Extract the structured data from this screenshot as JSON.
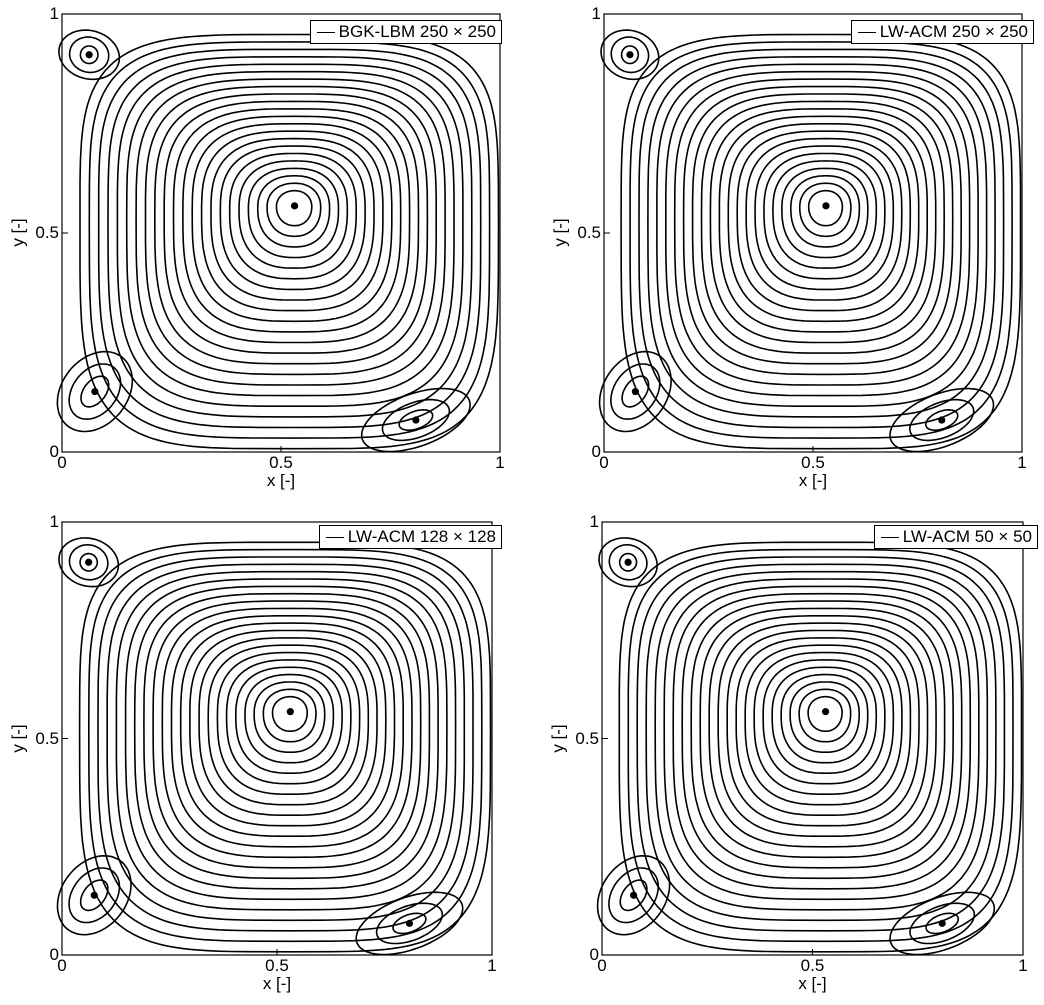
{
  "chart_data": [
    {
      "type": "line",
      "legend": "BGK-LBM 250 × 250",
      "xlabel": "x [-]",
      "ylabel": "y [-]",
      "xlim": [
        0,
        1
      ],
      "ylim": [
        0,
        1
      ],
      "xticks": [
        "0",
        "0.5",
        "1"
      ],
      "yticks": [
        "0",
        "0.5",
        "1"
      ],
      "legend_position": "top-right",
      "vortex_centers": [
        {
          "name": "primary",
          "x": 0.531,
          "y": 0.562
        },
        {
          "name": "bottom-left",
          "x": 0.075,
          "y": 0.138
        },
        {
          "name": "bottom-right",
          "x": 0.808,
          "y": 0.073
        },
        {
          "name": "top-left",
          "x": 0.062,
          "y": 0.907
        }
      ]
    },
    {
      "type": "line",
      "legend": "LW-ACM 250 × 250",
      "xlabel": "x [-]",
      "ylabel": "y [-]",
      "xlim": [
        0,
        1
      ],
      "ylim": [
        0,
        1
      ],
      "xticks": [
        "0",
        "0.5",
        "1"
      ],
      "yticks": [
        "0",
        "0.5",
        "1"
      ],
      "legend_position": "top-right",
      "vortex_centers": [
        {
          "name": "primary",
          "x": 0.531,
          "y": 0.562
        },
        {
          "name": "bottom-left",
          "x": 0.075,
          "y": 0.138
        },
        {
          "name": "bottom-right",
          "x": 0.808,
          "y": 0.073
        },
        {
          "name": "top-left",
          "x": 0.062,
          "y": 0.907
        }
      ]
    },
    {
      "type": "line",
      "legend": "LW-ACM 128 × 128",
      "xlabel": "x [-]",
      "ylabel": "y [-]",
      "xlim": [
        0,
        1
      ],
      "ylim": [
        0,
        1
      ],
      "xticks": [
        "0",
        "0.5",
        "1"
      ],
      "yticks": [
        "0",
        "0.5",
        "1"
      ],
      "legend_position": "top-right",
      "vortex_centers": [
        {
          "name": "primary",
          "x": 0.531,
          "y": 0.562
        },
        {
          "name": "bottom-left",
          "x": 0.075,
          "y": 0.138
        },
        {
          "name": "bottom-right",
          "x": 0.808,
          "y": 0.073
        },
        {
          "name": "top-left",
          "x": 0.062,
          "y": 0.907
        }
      ]
    },
    {
      "type": "line",
      "legend": "LW-ACM 50 × 50",
      "xlabel": "x [-]",
      "ylabel": "y [-]",
      "xlim": [
        0,
        1
      ],
      "ylim": [
        0,
        1
      ],
      "xticks": [
        "0",
        "0.5",
        "1"
      ],
      "yticks": [
        "0",
        "0.5",
        "1"
      ],
      "legend_position": "top-right",
      "vortex_centers": [
        {
          "name": "primary",
          "x": 0.531,
          "y": 0.562
        },
        {
          "name": "bottom-left",
          "x": 0.075,
          "y": 0.138
        },
        {
          "name": "bottom-right",
          "x": 0.808,
          "y": 0.073
        },
        {
          "name": "top-left",
          "x": 0.062,
          "y": 0.907
        }
      ]
    }
  ]
}
